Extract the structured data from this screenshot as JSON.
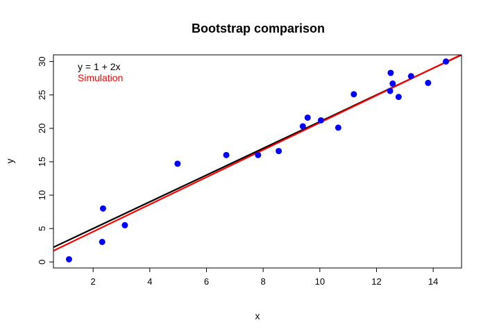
{
  "chart_data": {
    "type": "scatter",
    "title": "Bootstrap comparison",
    "xlabel": "x",
    "ylabel": "y",
    "xlim": [
      0.6,
      15.0
    ],
    "ylim": [
      -0.9,
      31.0
    ],
    "xticks": [
      2,
      4,
      6,
      8,
      10,
      12,
      14
    ],
    "yticks": [
      0,
      5,
      10,
      15,
      20,
      25,
      30
    ],
    "grid": false,
    "legend_position": "top-left",
    "points": {
      "color": "#0000ff",
      "x": [
        1.15,
        2.32,
        2.35,
        3.12,
        4.98,
        6.7,
        7.82,
        8.55,
        9.4,
        9.57,
        10.04,
        10.65,
        11.2,
        12.48,
        12.5,
        12.57,
        12.78,
        13.22,
        13.82,
        14.45
      ],
      "y": [
        0.4,
        3.0,
        8.0,
        5.5,
        14.7,
        16.0,
        16.0,
        16.6,
        20.3,
        21.6,
        21.2,
        20.1,
        25.1,
        25.6,
        28.3,
        26.7,
        24.7,
        27.8,
        26.8,
        30.0
      ]
    },
    "series": [
      {
        "name": "y = 1 + 2x",
        "color": "#000000",
        "intercept": 1.0,
        "slope": 2.0
      },
      {
        "name": "Simulation",
        "color": "#ff0000",
        "intercept": 0.45,
        "slope": 2.04
      }
    ]
  }
}
